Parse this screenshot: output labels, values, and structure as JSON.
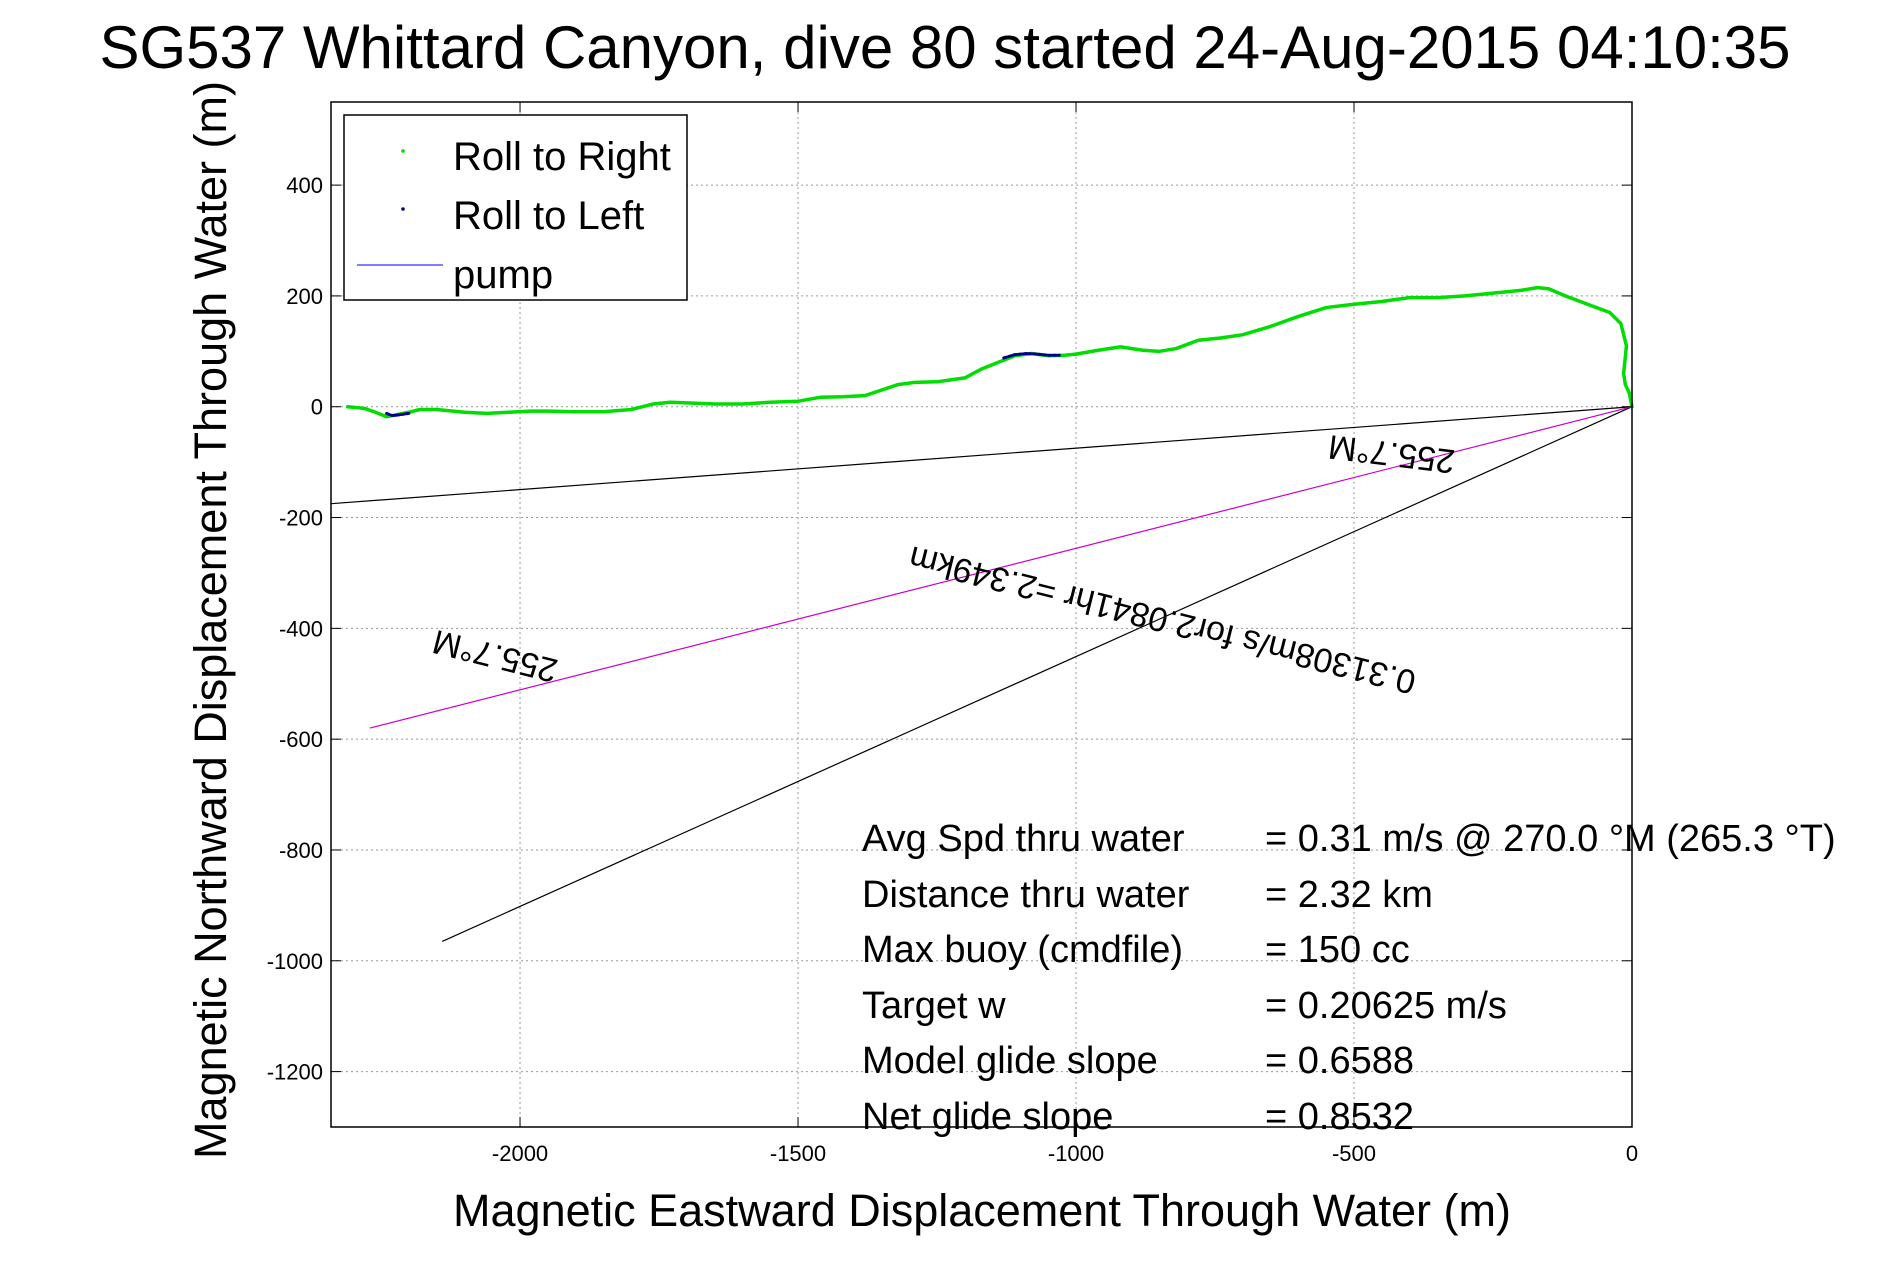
{
  "chart_data": {
    "type": "line",
    "title": "SG537 Whittard Canyon, dive 80 started 24-Aug-2015 04:10:35",
    "xlabel": "Magnetic Eastward Displacement Through Water (m)",
    "ylabel": "Magnetic Northward Displacement Through Water (m)",
    "xlim": [
      -2340,
      0
    ],
    "ylim": [
      -1300,
      550
    ],
    "xticks": [
      -2000,
      -1500,
      -1000,
      -500,
      0
    ],
    "yticks": [
      400,
      200,
      0,
      -200,
      -400,
      -600,
      -800,
      -1000,
      -1200
    ],
    "grid": true,
    "legend_position": "top-left",
    "legend": [
      "Roll to Right",
      "Roll to Left",
      "pump"
    ],
    "colors": {
      "roll_right": "#00dd00",
      "roll_left": "#00008b",
      "pump": "#3333ff",
      "heading_line": "#cc00cc",
      "reference_lines": "#000000"
    },
    "series": [
      {
        "name": "Roll to Right",
        "x": [
          -2310,
          -2280,
          -2260,
          -2240,
          -2220,
          -2200,
          -2180,
          -2150,
          -2100,
          -2060,
          -2020,
          -1980,
          -1950,
          -1900,
          -1850,
          -1800,
          -1760,
          -1730,
          -1700,
          -1650,
          -1600,
          -1550,
          -1500,
          -1460,
          -1420,
          -1380,
          -1350,
          -1320,
          -1290,
          -1250,
          -1200,
          -1170,
          -1140,
          -1110,
          -1080,
          -1050,
          -1020,
          -1000,
          -960,
          -920,
          -880,
          -850,
          -820,
          -780,
          -740,
          -700,
          -650,
          -600,
          -550,
          -500,
          -450,
          -400,
          -350,
          -300,
          -250,
          -200,
          -170,
          -150,
          -120,
          -80,
          -40,
          -20,
          -10,
          -15,
          -12,
          -5,
          0
        ],
        "y": [
          0,
          -3,
          -10,
          -18,
          -14,
          -10,
          -5,
          -5,
          -10,
          -12,
          -10,
          -8,
          -8,
          -9,
          -9,
          -5,
          5,
          8,
          7,
          5,
          5,
          8,
          10,
          17,
          18,
          20,
          30,
          40,
          44,
          45,
          52,
          68,
          80,
          92,
          96,
          92,
          93,
          95,
          102,
          108,
          102,
          100,
          105,
          120,
          124,
          130,
          145,
          163,
          179,
          185,
          190,
          197,
          197,
          200,
          205,
          210,
          215,
          213,
          200,
          185,
          170,
          150,
          110,
          60,
          40,
          25,
          0
        ]
      },
      {
        "name": "Roll to Left",
        "x": [
          -2240,
          -2230,
          -2220,
          -2200,
          -1130,
          -1110,
          -1090,
          -1070,
          -1050,
          -1030
        ],
        "y": [
          -12,
          -16,
          -15,
          -12,
          88,
          94,
          96,
          95,
          93,
          93
        ]
      }
    ],
    "lines": [
      {
        "from": [
          0,
          0
        ],
        "to": [
          -2340,
          -175
        ]
      },
      {
        "from": [
          0,
          0
        ],
        "to": [
          -2140,
          -965
        ]
      },
      {
        "from": [
          0,
          0
        ],
        "to": [
          -2270,
          -580
        ]
      }
    ],
    "annotations": [
      {
        "text": "255.7°M",
        "anchor": [
          -430,
          -65
        ],
        "angle_deg": 7
      },
      {
        "text": "0.31308m/s for2.0841hr =2.349km",
        "anchor": [
          -840,
          -365
        ],
        "angle_deg": 14
      },
      {
        "text": "255.7°M",
        "anchor": [
          -2040,
          -430
        ],
        "angle_deg": 14
      }
    ],
    "stats": [
      {
        "label": "Avg Spd thru water",
        "value": "=  0.31 m/s @ 270.0 °M (265.3 °T)"
      },
      {
        "label": "Distance thru water",
        "value": "=  2.32 km"
      },
      {
        "label": "Max buoy (cmdfile)",
        "value": "= 150 cc"
      },
      {
        "label": "Target w",
        "value": "= 0.20625 m/s"
      },
      {
        "label": "Model glide slope",
        "value": "= 0.6588"
      },
      {
        "label": "Net glide slope",
        "value": "= 0.8532"
      }
    ]
  }
}
